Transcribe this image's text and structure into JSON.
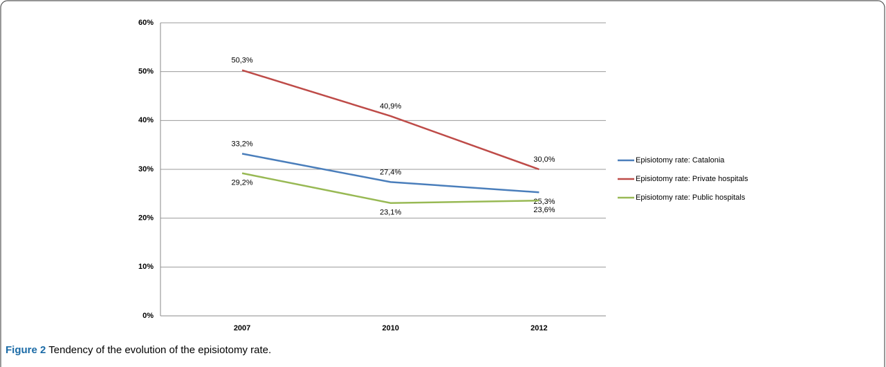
{
  "chart_data": {
    "type": "line",
    "categories": [
      "2007",
      "2010",
      "2012"
    ],
    "series": [
      {
        "name": "Episiotomy rate: Catalonia",
        "color": "#4a7ebb",
        "values": [
          33.2,
          27.4,
          25.3
        ],
        "value_labels": [
          "33,2%",
          "27,4%",
          "25,3%"
        ]
      },
      {
        "name": "Episiotomy rate: Private hospitals",
        "color": "#be4b48",
        "values": [
          50.3,
          40.9,
          30.0
        ],
        "value_labels": [
          "50,3%",
          "40,9%",
          "30,0%"
        ]
      },
      {
        "name": "Episiotomy rate: Public hospitals",
        "color": "#98b954",
        "values": [
          29.2,
          23.1,
          23.6
        ],
        "value_labels": [
          "29,2%",
          "23,1%",
          "23,6%"
        ]
      }
    ],
    "ylim": [
      0,
      60
    ],
    "yticks": [
      {
        "value": 0,
        "label": "0%"
      },
      {
        "value": 10,
        "label": "10%"
      },
      {
        "value": 20,
        "label": "20%"
      },
      {
        "value": 30,
        "label": "30%"
      },
      {
        "value": 40,
        "label": "40%"
      },
      {
        "value": 50,
        "label": "50%"
      },
      {
        "value": 60,
        "label": "60%"
      }
    ],
    "grid": true,
    "legend": "right"
  },
  "figure": {
    "label": "Figure 2",
    "caption": "Tendency of the evolution of the episiotomy rate."
  }
}
